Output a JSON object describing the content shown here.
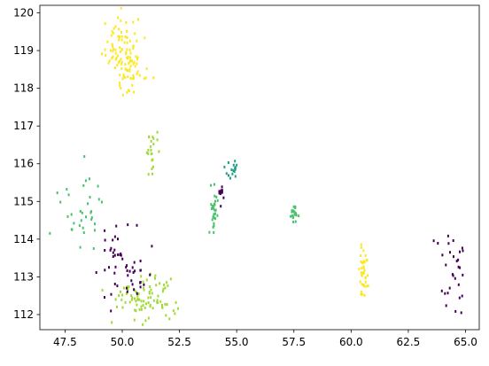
{
  "chart_data": {
    "type": "scatter",
    "title": "",
    "xlabel": "",
    "ylabel": "",
    "xlim": [
      46.4,
      65.6
    ],
    "ylim": [
      111.6,
      120.2
    ],
    "x_ticks": [
      47.5,
      50.0,
      52.5,
      55.0,
      57.5,
      60.0,
      62.5,
      65.0
    ],
    "x_tick_labels": [
      "47.5",
      "50.0",
      "52.5",
      "55.0",
      "57.5",
      "60.0",
      "62.5",
      "65.0"
    ],
    "y_ticks": [
      112,
      113,
      114,
      115,
      116,
      117,
      118,
      119,
      120
    ],
    "y_tick_labels": [
      "112",
      "113",
      "114",
      "115",
      "116",
      "117",
      "118",
      "119",
      "120"
    ],
    "grid": false,
    "legend": "none",
    "colormap": "viridis",
    "clusters": [
      {
        "color": "#fde725",
        "cx": 49.9,
        "cy": 119.15,
        "sx": 0.35,
        "sy": 0.45,
        "n": 70,
        "seed": 11
      },
      {
        "color": "#fde725",
        "cx": 50.3,
        "cy": 118.45,
        "sx": 0.35,
        "sy": 0.35,
        "n": 50,
        "seed": 12
      },
      {
        "color": "#fde725",
        "cx": 60.5,
        "cy": 113.15,
        "sx": 0.12,
        "sy": 0.3,
        "n": 40,
        "seed": 13
      },
      {
        "color": "#a0da39",
        "cx": 51.3,
        "cy": 116.3,
        "sx": 0.12,
        "sy": 0.35,
        "n": 22,
        "seed": 21
      },
      {
        "color": "#a0da39",
        "cx": 51.0,
        "cy": 112.4,
        "sx": 0.7,
        "sy": 0.3,
        "n": 90,
        "seed": 22
      },
      {
        "color": "#4ac16d",
        "cx": 54.0,
        "cy": 114.7,
        "sx": 0.1,
        "sy": 0.3,
        "n": 30,
        "seed": 31
      },
      {
        "color": "#4ac16d",
        "cx": 48.3,
        "cy": 114.7,
        "sx": 0.55,
        "sy": 0.45,
        "n": 35,
        "seed": 32
      },
      {
        "color": "#4ac16d",
        "cx": 57.5,
        "cy": 114.65,
        "sx": 0.08,
        "sy": 0.12,
        "n": 18,
        "seed": 33
      },
      {
        "color": "#1fa187",
        "cx": 54.8,
        "cy": 115.85,
        "sx": 0.15,
        "sy": 0.15,
        "n": 16,
        "seed": 41
      },
      {
        "color": "#440154",
        "cx": 54.3,
        "cy": 115.15,
        "sx": 0.06,
        "sy": 0.12,
        "n": 12,
        "seed": 51
      },
      {
        "color": "#440154",
        "cx": 50.0,
        "cy": 113.2,
        "sx": 0.5,
        "sy": 0.55,
        "n": 55,
        "seed": 52
      },
      {
        "color": "#440154",
        "cx": 64.5,
        "cy": 113.1,
        "sx": 0.35,
        "sy": 0.5,
        "n": 30,
        "seed": 53
      }
    ]
  }
}
